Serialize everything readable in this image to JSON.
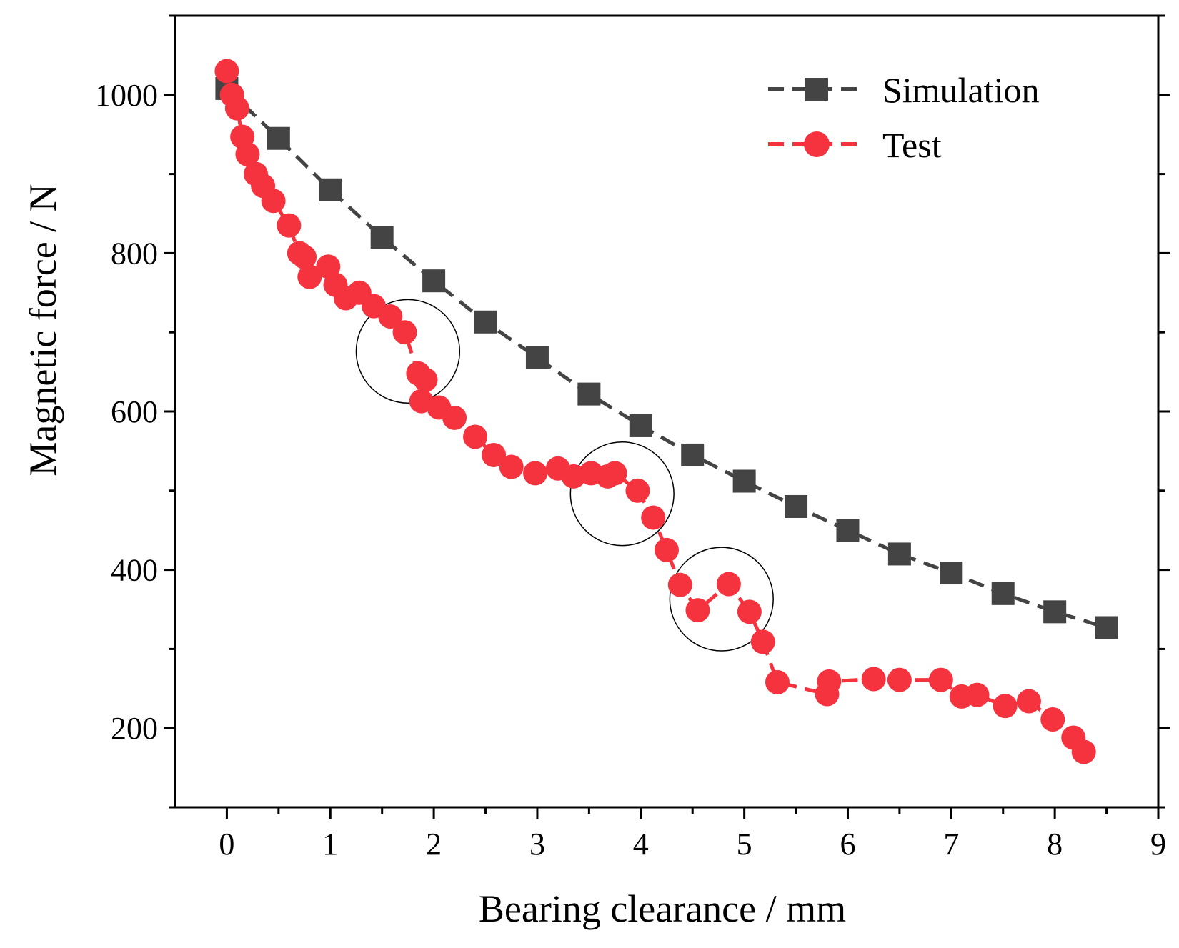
{
  "chart_data": {
    "type": "line",
    "title": "",
    "xlabel": "Bearing clearance / mm",
    "ylabel": "Magnetic force / N",
    "xlim": [
      -0.5,
      9
    ],
    "ylim": [
      100,
      1100
    ],
    "xticks": [
      0,
      1,
      2,
      3,
      4,
      5,
      6,
      7,
      8,
      9
    ],
    "yticks": [
      200,
      400,
      600,
      800,
      1000
    ],
    "xtick_labels": [
      "0",
      "1",
      "2",
      "3",
      "4",
      "5",
      "6",
      "7",
      "8",
      "9"
    ],
    "ytick_labels": [
      "200",
      "400",
      "600",
      "800",
      "1000"
    ],
    "legend_position": "top-right",
    "series": [
      {
        "name": "Simulation",
        "color": "#444444",
        "marker": "square",
        "line_style": "dashed",
        "x": [
          0,
          0.5,
          1,
          1.5,
          2,
          2.5,
          3,
          3.5,
          4,
          4.5,
          5,
          5.5,
          6,
          6.5,
          7,
          7.5,
          8,
          8.5
        ],
        "y": [
          1008,
          945,
          880,
          820,
          765,
          713,
          668,
          622,
          582,
          545,
          512,
          480,
          450,
          420,
          396,
          370,
          347,
          327
        ]
      },
      {
        "name": "Test",
        "color": "#f5333f",
        "marker": "circle",
        "line_style": "dashed",
        "x": [
          0,
          0.05,
          0.1,
          0.15,
          0.2,
          0.28,
          0.35,
          0.45,
          0.6,
          0.7,
          0.75,
          0.8,
          0.98,
          1.05,
          1.15,
          1.28,
          1.42,
          1.58,
          1.72,
          1.85,
          1.92,
          1.88,
          2.05,
          2.2,
          2.4,
          2.58,
          2.75,
          2.98,
          3.2,
          3.35,
          3.52,
          3.68,
          3.75,
          3.97,
          4.12,
          4.25,
          4.38,
          4.55,
          4.85,
          5.05,
          5.18,
          5.32,
          5.8,
          5.82,
          6.25,
          6.5,
          6.9,
          7.1,
          7.25,
          7.52,
          7.75,
          7.98,
          8.18,
          8.28
        ],
        "y": [
          1030,
          1000,
          983,
          947,
          925,
          900,
          885,
          866,
          835,
          800,
          795,
          770,
          783,
          760,
          743,
          750,
          733,
          720,
          700,
          648,
          640,
          613,
          605,
          592,
          568,
          545,
          530,
          522,
          528,
          518,
          522,
          518,
          522,
          500,
          466,
          425,
          381,
          349,
          382,
          347,
          309,
          258,
          243,
          259,
          262,
          261,
          261,
          240,
          242,
          228,
          234,
          211,
          188,
          170
        ]
      }
    ],
    "annotations": [
      {
        "type": "circle",
        "x": 1.75,
        "y": 676,
        "radius_x": 0.5
      },
      {
        "type": "circle",
        "x": 3.82,
        "y": 496,
        "radius_x": 0.5
      },
      {
        "type": "circle",
        "x": 4.78,
        "y": 363,
        "radius_x": 0.5
      }
    ]
  }
}
